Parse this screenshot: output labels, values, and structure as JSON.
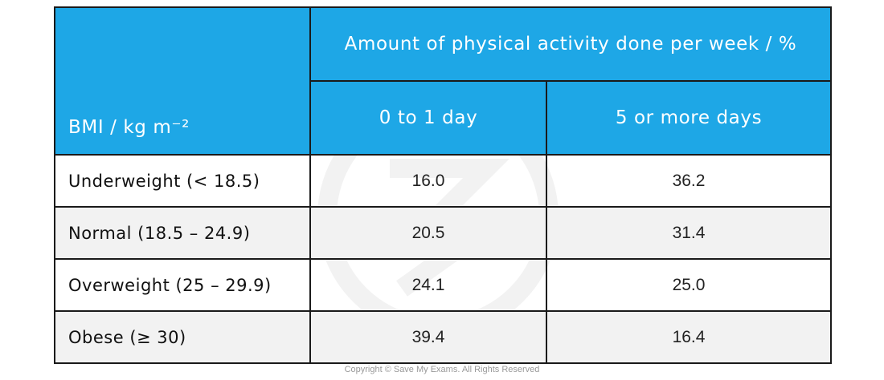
{
  "table": {
    "header": {
      "group_title": "Amount of physical activity done per week / %",
      "row_header": "BMI / kg m⁻²",
      "columns": [
        "0 to 1 day",
        "5 or more days"
      ]
    },
    "rows": [
      {
        "label": "Underweight (< 18.5)",
        "values": [
          "16.0",
          "36.2"
        ]
      },
      {
        "label": "Normal (18.5 – 24.9)",
        "values": [
          "20.5",
          "31.4"
        ]
      },
      {
        "label": "Overweight (25 – 29.9)",
        "values": [
          "24.1",
          "25.0"
        ]
      },
      {
        "label": "Obese (≥ 30)",
        "values": [
          "39.4",
          "16.4"
        ]
      }
    ]
  },
  "colors": {
    "header_bg": "#1ea7e6",
    "header_text": "#ffffff",
    "alt_row_bg": "#f2f2f2"
  },
  "footer": {
    "copyright": "Copyright © Save My Exams. All Rights Reserved"
  }
}
